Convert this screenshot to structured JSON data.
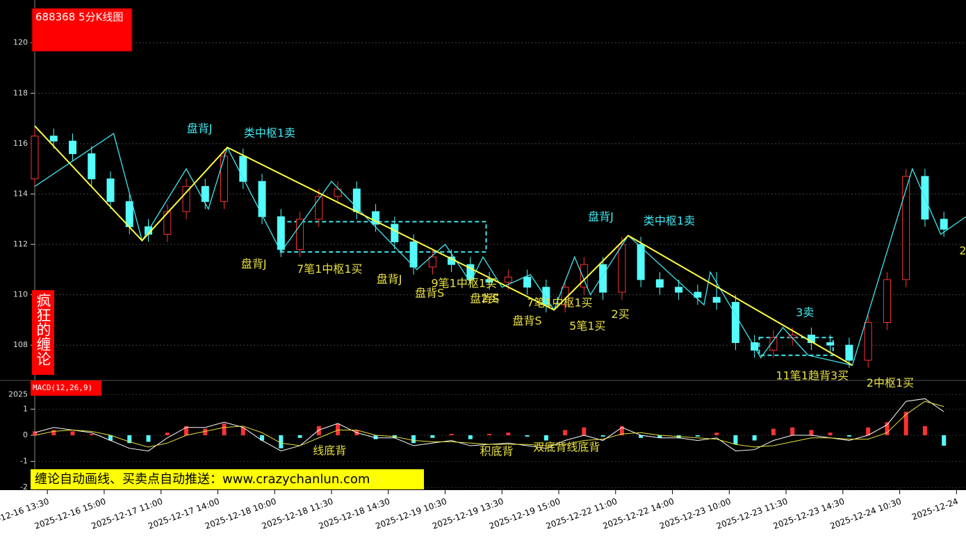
{
  "chart_data": {
    "type": "candlestick",
    "title": "688368 5分K线图",
    "side_label": "疯狂的缠论",
    "banner": "缠论自动画线、买卖点自动推送：www.crazychanlun.com",
    "up_color": "#ff3232",
    "down_color": "#54fcfc",
    "xlim": [
      0,
      295
    ],
    "xticks": [
      {
        "value": 4,
        "label": "2025-12-16 13:30"
      },
      {
        "value": 22,
        "label": "2025-12-16 15:00"
      },
      {
        "value": 40,
        "label": "2025-12-17 11:00"
      },
      {
        "value": 58,
        "label": "2025-12-17 14:00"
      },
      {
        "value": 76,
        "label": "2025-12-18 10:00"
      },
      {
        "value": 94,
        "label": "2025-12-18 11:30"
      },
      {
        "value": 112,
        "label": "2025-12-18 14:30"
      },
      {
        "value": 130,
        "label": "2025-12-19 10:30"
      },
      {
        "value": 148,
        "label": "2025-12-19 13:30"
      },
      {
        "value": 166,
        "label": "2025-12-19 15:00"
      },
      {
        "value": 184,
        "label": "2025-12-22 11:00"
      },
      {
        "value": 202,
        "label": "2025-12-22 14:00"
      },
      {
        "value": 220,
        "label": "2025-12-23 10:00"
      },
      {
        "value": 238,
        "label": "2025-12-23 11:30"
      },
      {
        "value": 256,
        "label": "2025-12-23 14:30"
      },
      {
        "value": 274,
        "label": "2025-12-24 10:30"
      },
      {
        "value": 292,
        "label": "2025-12-24"
      }
    ],
    "ylim": [
      106.6,
      121.7
    ],
    "yticks": [
      108,
      110,
      112,
      114,
      116,
      118,
      120
    ],
    "grid": true,
    "x": [
      0,
      6,
      12,
      18,
      24,
      30,
      36,
      42,
      48,
      54,
      60,
      66,
      72,
      78,
      84,
      90,
      96,
      102,
      108,
      114,
      120,
      126,
      132,
      138,
      144,
      150,
      156,
      162,
      168,
      174,
      180,
      186,
      192,
      198,
      204,
      210,
      216,
      222,
      228,
      234,
      240,
      246,
      252,
      258,
      264,
      270,
      276,
      282,
      288
    ],
    "candles": [
      [
        114.6,
        116.6,
        114.3,
        116.3
      ],
      [
        116.3,
        116.6,
        115.8,
        116.1
      ],
      [
        116.1,
        116.4,
        115.3,
        115.6
      ],
      [
        115.6,
        115.9,
        114.3,
        114.6
      ],
      [
        114.6,
        114.9,
        113.4,
        113.7
      ],
      [
        113.7,
        114.0,
        112.4,
        112.7
      ],
      [
        112.7,
        113.0,
        112.1,
        112.4
      ],
      [
        112.4,
        113.6,
        112.1,
        113.3
      ],
      [
        113.3,
        114.6,
        113.0,
        114.3
      ],
      [
        114.3,
        114.6,
        113.4,
        113.7
      ],
      [
        113.7,
        115.8,
        113.4,
        115.5
      ],
      [
        115.5,
        115.8,
        114.2,
        114.5
      ],
      [
        114.5,
        114.8,
        112.8,
        113.1
      ],
      [
        113.1,
        113.4,
        111.5,
        111.8
      ],
      [
        111.8,
        113.3,
        111.5,
        113.0
      ],
      [
        113.0,
        114.2,
        112.7,
        113.9
      ],
      [
        113.9,
        114.5,
        113.6,
        114.2
      ],
      [
        114.2,
        114.5,
        113.0,
        113.3
      ],
      [
        113.3,
        113.6,
        112.5,
        112.8
      ],
      [
        112.8,
        113.1,
        111.8,
        112.1
      ],
      [
        112.1,
        112.4,
        110.8,
        111.1
      ],
      [
        111.1,
        111.8,
        110.8,
        111.5
      ],
      [
        111.5,
        111.8,
        110.9,
        111.2
      ],
      [
        111.2,
        111.5,
        110.3,
        110.6
      ],
      [
        110.6,
        110.9,
        110.2,
        110.5
      ],
      [
        110.5,
        111.0,
        110.2,
        110.7
      ],
      [
        110.7,
        111.0,
        110.0,
        110.3
      ],
      [
        110.3,
        110.6,
        109.3,
        109.6
      ],
      [
        109.6,
        110.6,
        109.3,
        110.3
      ],
      [
        110.3,
        111.5,
        110.0,
        111.2
      ],
      [
        111.2,
        111.5,
        109.8,
        110.1
      ],
      [
        110.1,
        112.3,
        109.8,
        112.0
      ],
      [
        112.0,
        112.3,
        110.3,
        110.6
      ],
      [
        110.6,
        110.9,
        110.0,
        110.3
      ],
      [
        110.3,
        110.6,
        109.8,
        110.1
      ],
      [
        110.1,
        110.4,
        109.6,
        109.9
      ],
      [
        109.9,
        110.9,
        109.4,
        109.7
      ],
      [
        109.7,
        110.0,
        107.8,
        108.1
      ],
      [
        108.1,
        108.4,
        107.5,
        107.8
      ],
      [
        107.8,
        108.6,
        107.5,
        108.3
      ],
      [
        108.3,
        108.7,
        108.0,
        108.4
      ],
      [
        108.4,
        108.7,
        107.8,
        108.1
      ],
      [
        108.1,
        108.4,
        107.7,
        108.0
      ],
      [
        108.0,
        108.3,
        107.1,
        107.4
      ],
      [
        107.4,
        109.2,
        107.1,
        108.9
      ],
      [
        108.9,
        110.9,
        108.6,
        110.6
      ],
      [
        110.6,
        115.0,
        110.3,
        114.7
      ],
      [
        114.7,
        115.0,
        112.7,
        113.0
      ],
      [
        113.0,
        113.3,
        112.3,
        112.6
      ]
    ],
    "segments": {
      "color": "#ffff40",
      "x": [
        0,
        34,
        61,
        164.5,
        188,
        259
      ],
      "y": [
        116.7,
        112.15,
        115.85,
        109.4,
        112.35,
        107.2
      ]
    },
    "strokes": {
      "color": "#40e8f0",
      "x": [
        0,
        25,
        34,
        48,
        55,
        61,
        78,
        94,
        121,
        130,
        138,
        142,
        148,
        157,
        164.5,
        171,
        176,
        188,
        212,
        214,
        230,
        237,
        245,
        259,
        278,
        287,
        295
      ],
      "y": [
        114.3,
        116.4,
        112.15,
        115.0,
        113.4,
        115.85,
        111.7,
        114.5,
        111.0,
        112.0,
        110.5,
        111.5,
        110.3,
        110.8,
        109.4,
        111.5,
        110.0,
        112.35,
        109.6,
        110.9,
        107.5,
        108.7,
        107.6,
        107.2,
        115.0,
        112.4,
        113.1
      ]
    },
    "boxes": [
      {
        "x": [
          77.8,
          143
        ],
        "y": [
          111.7,
          112.9
        ]
      },
      {
        "x": [
          229.5,
          252.9
        ],
        "y": [
          107.6,
          108.3
        ]
      }
    ],
    "annotations": [
      {
        "text": "盘背J",
        "x": 52.2,
        "y": 116.58,
        "color": "#40e8f0"
      },
      {
        "text": "类中枢1卖",
        "x": 74.4,
        "y": 116.39,
        "color": "#40e8f0"
      },
      {
        "text": "盘背J",
        "x": 179.3,
        "y": 113.08,
        "color": "#40e8f0"
      },
      {
        "text": "类中枢1卖",
        "x": 201,
        "y": 112.91,
        "color": "#40e8f0"
      },
      {
        "text": "3卖",
        "x": 244,
        "y": 109.27,
        "color": "#40e8f0"
      },
      {
        "text": "盘背J",
        "x": 69.4,
        "y": 111.2,
        "color": "#e8e040"
      },
      {
        "text": "7笔1中枢1买",
        "x": 93.4,
        "y": 111.0,
        "color": "#e8e040"
      },
      {
        "text": "盘背J",
        "x": 112.3,
        "y": 110.59,
        "color": "#e8e040"
      },
      {
        "text": "盘背S",
        "x": 125.1,
        "y": 110.04,
        "color": "#e8e040"
      },
      {
        "text": "9笔1中枢1买",
        "x": 136,
        "y": 110.43,
        "color": "#e8e040"
      },
      {
        "text": "盘背S",
        "x": 142.5,
        "y": 109.82,
        "color": "#e8e040"
      },
      {
        "text": "2买",
        "x": 144.3,
        "y": 109.82,
        "color": "#e8e040"
      },
      {
        "text": "7笔1中枢1买",
        "x": 166.3,
        "y": 109.66,
        "color": "#e8e040"
      },
      {
        "text": "盘背S",
        "x": 156,
        "y": 108.94,
        "color": "#e8e040"
      },
      {
        "text": "5笔1买",
        "x": 175.1,
        "y": 108.74,
        "color": "#e8e040"
      },
      {
        "text": "2买",
        "x": 185.5,
        "y": 109.21,
        "color": "#e8e040"
      },
      {
        "text": "11笔1趋背3买",
        "x": 246.3,
        "y": 106.76,
        "color": "#e8e040"
      },
      {
        "text": "2中枢1买",
        "x": 271,
        "y": 106.48,
        "color": "#e8e040"
      },
      {
        "text": "2",
        "x": 294,
        "y": 111.72,
        "color": "#e8e040"
      }
    ],
    "macd": {
      "title": "MACD(12,26,9)",
      "ylim": [
        -2.1,
        2.1
      ],
      "yticks": [
        {
          "value": 1.56,
          "label": "2025"
        },
        1,
        0,
        -1,
        -2
      ],
      "hist": [
        0.15,
        0.2,
        0.15,
        0.05,
        -0.2,
        -0.3,
        -0.25,
        0.1,
        0.35,
        0.25,
        0.45,
        0.3,
        -0.2,
        -0.5,
        -0.1,
        0.35,
        0.45,
        0.2,
        -0.15,
        -0.1,
        -0.3,
        -0.1,
        0.05,
        -0.15,
        0.05,
        0.1,
        -0.05,
        -0.2,
        0.2,
        0.3,
        -0.05,
        0.35,
        -0.1,
        -0.1,
        -0.1,
        -0.05,
        0.1,
        -0.35,
        -0.2,
        0.25,
        0.3,
        0.2,
        0.1,
        -0.05,
        0.3,
        0.5,
        0.9,
        0.35,
        -0.4
      ],
      "dif": {
        "color": "#ffffff",
        "values": [
          0.1,
          0.3,
          0.2,
          0.1,
          -0.2,
          -0.5,
          -0.6,
          -0.1,
          0.3,
          0.3,
          0.5,
          0.3,
          -0.2,
          -0.6,
          -0.4,
          0.2,
          0.45,
          0.1,
          -0.1,
          -0.1,
          -0.4,
          -0.3,
          -0.2,
          -0.4,
          -0.35,
          -0.3,
          -0.4,
          -0.5,
          -0.2,
          0,
          -0.2,
          0.3,
          0,
          -0.1,
          -0.1,
          -0.2,
          -0.1,
          -0.6,
          -0.55,
          -0.2,
          0,
          0,
          -0.1,
          -0.2,
          0,
          0.4,
          1.3,
          1.4,
          0.9
        ]
      },
      "dea": {
        "color": "#e8e040",
        "values": [
          0,
          0.15,
          0.2,
          0.15,
          0,
          -0.25,
          -0.45,
          -0.3,
          0,
          0.15,
          0.3,
          0.35,
          0.1,
          -0.3,
          -0.4,
          -0.1,
          0.2,
          0.2,
          0,
          -0.05,
          -0.2,
          -0.25,
          -0.25,
          -0.3,
          -0.35,
          -0.35,
          -0.35,
          -0.4,
          -0.35,
          -0.2,
          -0.15,
          0.05,
          0.1,
          0,
          -0.05,
          -0.1,
          -0.15,
          -0.35,
          -0.45,
          -0.4,
          -0.25,
          -0.1,
          -0.1,
          -0.15,
          -0.15,
          0.1,
          0.8,
          1.3,
          1.1
        ]
      },
      "annotations": [
        {
          "text": "线底背",
          "x": 93.4,
          "y": -0.61
        },
        {
          "text": "积底背",
          "x": 146.3,
          "y": -0.64
        },
        {
          "text": "双底背线底背",
          "x": 168.5,
          "y": -0.48
        }
      ]
    }
  }
}
